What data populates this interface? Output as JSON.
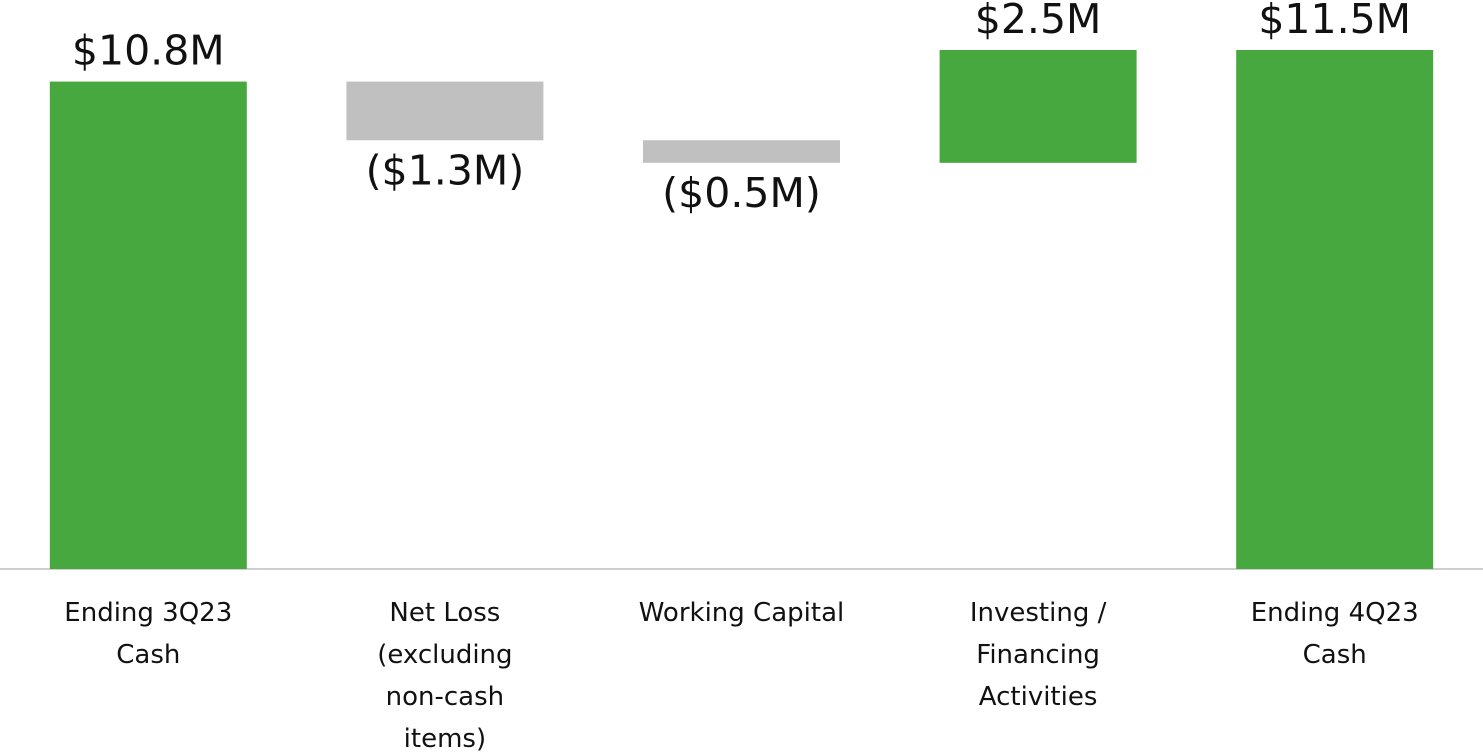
{
  "chart_data": {
    "type": "waterfall",
    "categories": [
      "Ending 3Q23 Cash",
      "Net Loss (excluding non-cash items)",
      "Working Capital",
      "Investing / Financing Activities",
      "Ending 4Q23 Cash"
    ],
    "values": [
      10.8,
      -1.3,
      -0.5,
      2.5,
      11.5
    ],
    "value_labels": [
      "$10.8M",
      "($1.3M)",
      "($0.5M)",
      "$2.5M",
      "$11.5M"
    ],
    "measure": [
      "total",
      "relative",
      "relative",
      "relative",
      "total"
    ],
    "colors": {
      "total": "#46a83e",
      "increase": "#46a83e",
      "decrease": "#c0c0c0"
    }
  }
}
